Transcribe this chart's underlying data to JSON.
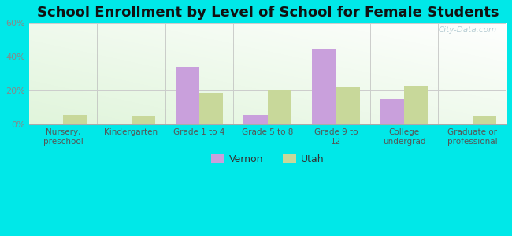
{
  "title": "School Enrollment by Level of School for Female Students",
  "categories": [
    "Nursery,\npreschool",
    "Kindergarten",
    "Grade 1 to 4",
    "Grade 5 to 8",
    "Grade 9 to\n12",
    "College\nundergrad",
    "Graduate or\nprofessional"
  ],
  "vernon_values": [
    0,
    0,
    34,
    6,
    45,
    15,
    0
  ],
  "utah_values": [
    6,
    5,
    19,
    20,
    22,
    23,
    5
  ],
  "vernon_color": "#c9a0dc",
  "utah_color": "#c8d89a",
  "ylim": [
    0,
    60
  ],
  "yticks": [
    0,
    20,
    40,
    60
  ],
  "ytick_labels": [
    "0%",
    "20%",
    "40%",
    "60%"
  ],
  "background_color": "#00e8e8",
  "title_fontsize": 13,
  "legend_labels": [
    "Vernon",
    "Utah"
  ],
  "bar_width": 0.35,
  "watermark": "City-Data.com"
}
